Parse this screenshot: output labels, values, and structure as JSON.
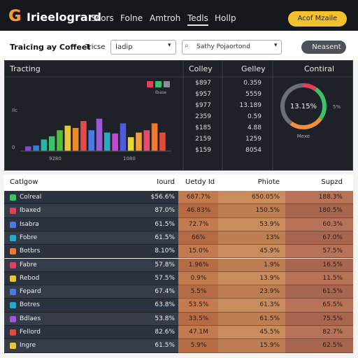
{
  "header": {
    "logo": "G",
    "title": "Irieelogrard",
    "nav": [
      "Scors",
      "Folne",
      "Amtroh",
      "Tedls",
      "Hollp"
    ],
    "active_nav": 3,
    "button": "Acof Mzaile"
  },
  "toolbar": {
    "label": "Traicing ay Coffeet",
    "filter_label": "Tricse",
    "dropdown": "Iadip",
    "search": "Sathy Pojaortond",
    "button": "Neasent"
  },
  "panel": {
    "chart": {
      "title": "Tracting",
      "y_labels": [
        "Ilc",
        "0"
      ],
      "x_labels": [
        "9280",
        "1080"
      ],
      "legend": "Ibase",
      "legend_colors": [
        "#e0405a",
        "#3cc06a",
        "#8a8f98"
      ],
      "values": [
        10,
        12,
        25,
        32,
        45,
        55,
        50,
        65,
        45,
        70,
        40,
        38,
        60,
        30,
        40,
        45,
        60,
        40
      ],
      "colors": [
        "#7b4bd1",
        "#3a7bd5",
        "#2bb5a0",
        "#3cc06a",
        "#4fbf3a",
        "#e8c53a",
        "#f08a2a",
        "#e34b4b",
        "#4a7be0",
        "#9b59d6",
        "#2ba8c8",
        "#c04ad0",
        "#4a5be0",
        "#e8d53a",
        "#f0a03a",
        "#e84b6b",
        "#f07a2a",
        "#e04b3b"
      ],
      "ylim": [
        0,
        100
      ]
    },
    "columns": [
      {
        "title": "Colley",
        "values": [
          "$897",
          "$957",
          "$977",
          "2359",
          "$185",
          "2159",
          "$159"
        ]
      },
      {
        "title": "Gelley",
        "values": [
          "0.359",
          "5559",
          "13.189",
          "0.59",
          "4.88",
          "1259",
          "8054"
        ]
      }
    ],
    "donut": {
      "title": "Contiral",
      "center": "13.15%",
      "side": "5%",
      "caption": "Mexe",
      "values": [
        10,
        25,
        25,
        40
      ],
      "colors": [
        "#e0405a",
        "#3cc06a",
        "#f0903a",
        "#6b7078"
      ]
    }
  },
  "table": {
    "headers": [
      "Catlgow",
      "Iourd",
      "Uetdy Id",
      "Phiote",
      "Supzd"
    ],
    "icon_colors": [
      "#3cc06a",
      "#e0405a",
      "#4a7be0",
      "#2ba8c8",
      "#f07a2a",
      "#e0405a",
      "#e8c53a",
      "#4a7be0",
      "#2ba8c8",
      "#9b59d6",
      "#e04b3b",
      "#e8c53a"
    ],
    "rows": [
      [
        "Colreal",
        "$56.6%",
        "687.7%",
        "650.05%",
        "188.3%"
      ],
      [
        "Ibaxed",
        "87.0%",
        "46.83%",
        "150.5%",
        "180.5%"
      ],
      [
        "Isabra",
        "61.5%",
        "72.7%",
        "53.9%",
        "60.3%"
      ],
      [
        "Fobre",
        "61.5%",
        "66%",
        "13%",
        "67.0%"
      ],
      [
        "Botbrs",
        "8.10%",
        "15.0%",
        "45.9%",
        "57.5%"
      ],
      [
        "Fabre",
        "57.8%",
        "1.96%",
        "1.9%",
        "16.5%"
      ],
      [
        "Rebod",
        "57.5%",
        "0.9%",
        "13.9%",
        "11.5%"
      ],
      [
        "Fepard",
        "67.4%",
        "5.5%",
        "23.9%",
        "61.5%"
      ],
      [
        "Botres",
        "63.8%",
        "53.5%",
        "61.3%",
        "65.5%"
      ],
      [
        "Bdlaes",
        "53.8%",
        "33.5%",
        "61.5%",
        "75.5%"
      ],
      [
        "Fellord",
        "82.6%",
        "47.1M",
        "45.5%",
        "82.7%"
      ],
      [
        "Ingre",
        "61.5%",
        "5.9%",
        "15.9%",
        "62.5%"
      ]
    ]
  }
}
